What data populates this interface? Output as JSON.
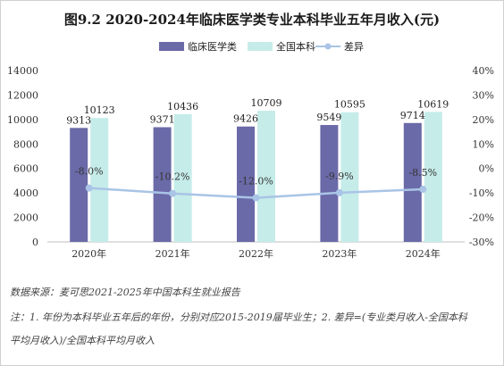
{
  "chart_data": {
    "type": "bar+line",
    "title": "图9.2  2020-2024年临床医学类专业本科毕业五年月收入(元)",
    "categories": [
      "2020年",
      "2021年",
      "2022年",
      "2023年",
      "2024年"
    ],
    "series": [
      {
        "name": "临床医学类",
        "type": "bar",
        "color": "#6b6aa8",
        "values": [
          9313,
          9371,
          9426,
          9549,
          9714
        ]
      },
      {
        "name": "全国本科",
        "type": "bar",
        "color": "#c5ece9",
        "values": [
          10123,
          10436,
          10709,
          10595,
          10619
        ]
      },
      {
        "name": "差异",
        "type": "line",
        "axis": "right",
        "color": "#a9c4e6",
        "values": [
          -8.0,
          -10.2,
          -12.0,
          -9.9,
          -8.5
        ]
      }
    ],
    "diff_labels": [
      "-8.0%",
      "-10.2%",
      "-12.0%",
      "-9.9%",
      "-8.5%"
    ],
    "ylim": [
      0,
      14000
    ],
    "yticks": [
      "0",
      "2000",
      "4000",
      "6000",
      "8000",
      "10000",
      "12000",
      "14000"
    ],
    "y2lim": [
      -30,
      40
    ],
    "y2ticks": [
      "-30%",
      "-20%",
      "-10%",
      "0%",
      "10%",
      "20%",
      "30%",
      "40%"
    ],
    "legend_position": "top",
    "grid": false
  },
  "notes": {
    "source": "数据来源：麦可思2021-2025年中国本科生就业报告",
    "note1": "注：1. 年份为本科毕业五年后的年份，分别对应2015-2019届毕业生；2. 差异=(专业类月收入-全国本科",
    "note2": "平均月收入)/全国本科平均月收入"
  }
}
